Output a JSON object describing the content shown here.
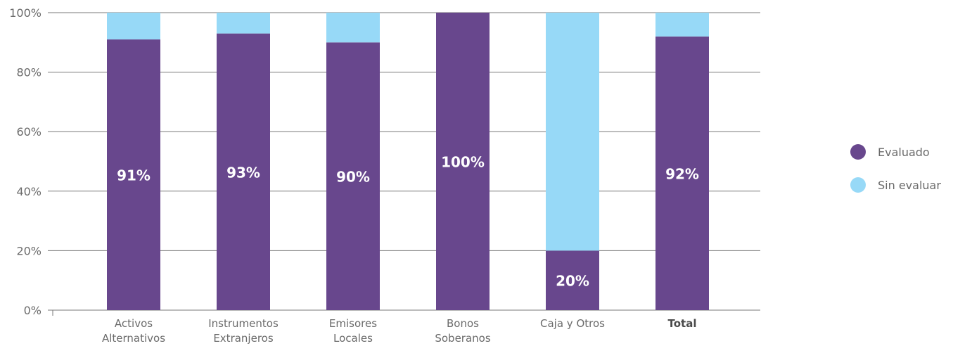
{
  "chart_data": {
    "type": "bar",
    "stacked": true,
    "categories": [
      [
        "Activos",
        "Alternativos"
      ],
      [
        "Instrumentos",
        "Extranjeros"
      ],
      [
        "Emisores",
        "Locales"
      ],
      [
        "Bonos",
        "Soberanos"
      ],
      [
        "Caja y Otros"
      ],
      [
        "Total"
      ]
    ],
    "bold_category": "Total",
    "series": [
      {
        "name": "Evaluado",
        "color": "#68478d",
        "values": [
          91,
          93,
          90,
          100,
          20,
          92
        ],
        "labels": [
          "91%",
          "93%",
          "90%",
          "100%",
          "20%",
          "92%"
        ]
      },
      {
        "name": "Sin evaluar",
        "color": "#97d9f7",
        "values": [
          9,
          7,
          10,
          0,
          80,
          8
        ]
      }
    ],
    "ylim": [
      0,
      100
    ],
    "yticks": [
      0,
      20,
      40,
      60,
      80,
      100
    ],
    "ytick_labels": [
      "0%",
      "20%",
      "40%",
      "60%",
      "80%",
      "100%"
    ],
    "grid": true,
    "legend_position": "right"
  }
}
